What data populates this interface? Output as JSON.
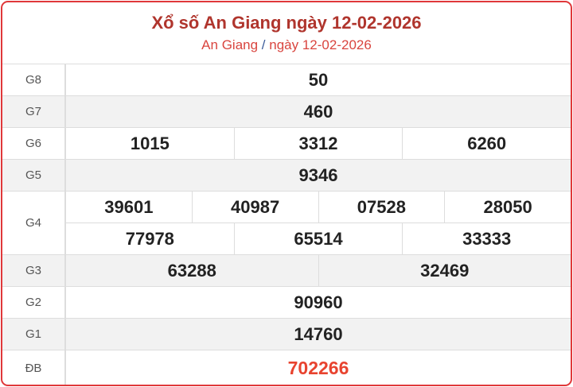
{
  "header": {
    "title": "Xổ số An Giang ngày 12-02-2026",
    "breadcrumb_province": "An Giang",
    "breadcrumb_separator": "/",
    "breadcrumb_date": "ngày 12-02-2026"
  },
  "colors": {
    "border": "#e0383a",
    "title": "#b0352d",
    "special": "#e8432f"
  },
  "prizes": {
    "g8": {
      "label": "G8",
      "numbers": [
        "50"
      ]
    },
    "g7": {
      "label": "G7",
      "numbers": [
        "460"
      ]
    },
    "g6": {
      "label": "G6",
      "numbers": [
        "1015",
        "3312",
        "6260"
      ]
    },
    "g5": {
      "label": "G5",
      "numbers": [
        "9346"
      ]
    },
    "g4": {
      "label": "G4",
      "numbers": [
        "39601",
        "40987",
        "07528",
        "28050",
        "77978",
        "65514",
        "33333"
      ]
    },
    "g3": {
      "label": "G3",
      "numbers": [
        "63288",
        "32469"
      ]
    },
    "g2": {
      "label": "G2",
      "numbers": [
        "90960"
      ]
    },
    "g1": {
      "label": "G1",
      "numbers": [
        "14760"
      ]
    },
    "db": {
      "label": "ĐB",
      "numbers": [
        "702266"
      ]
    }
  }
}
